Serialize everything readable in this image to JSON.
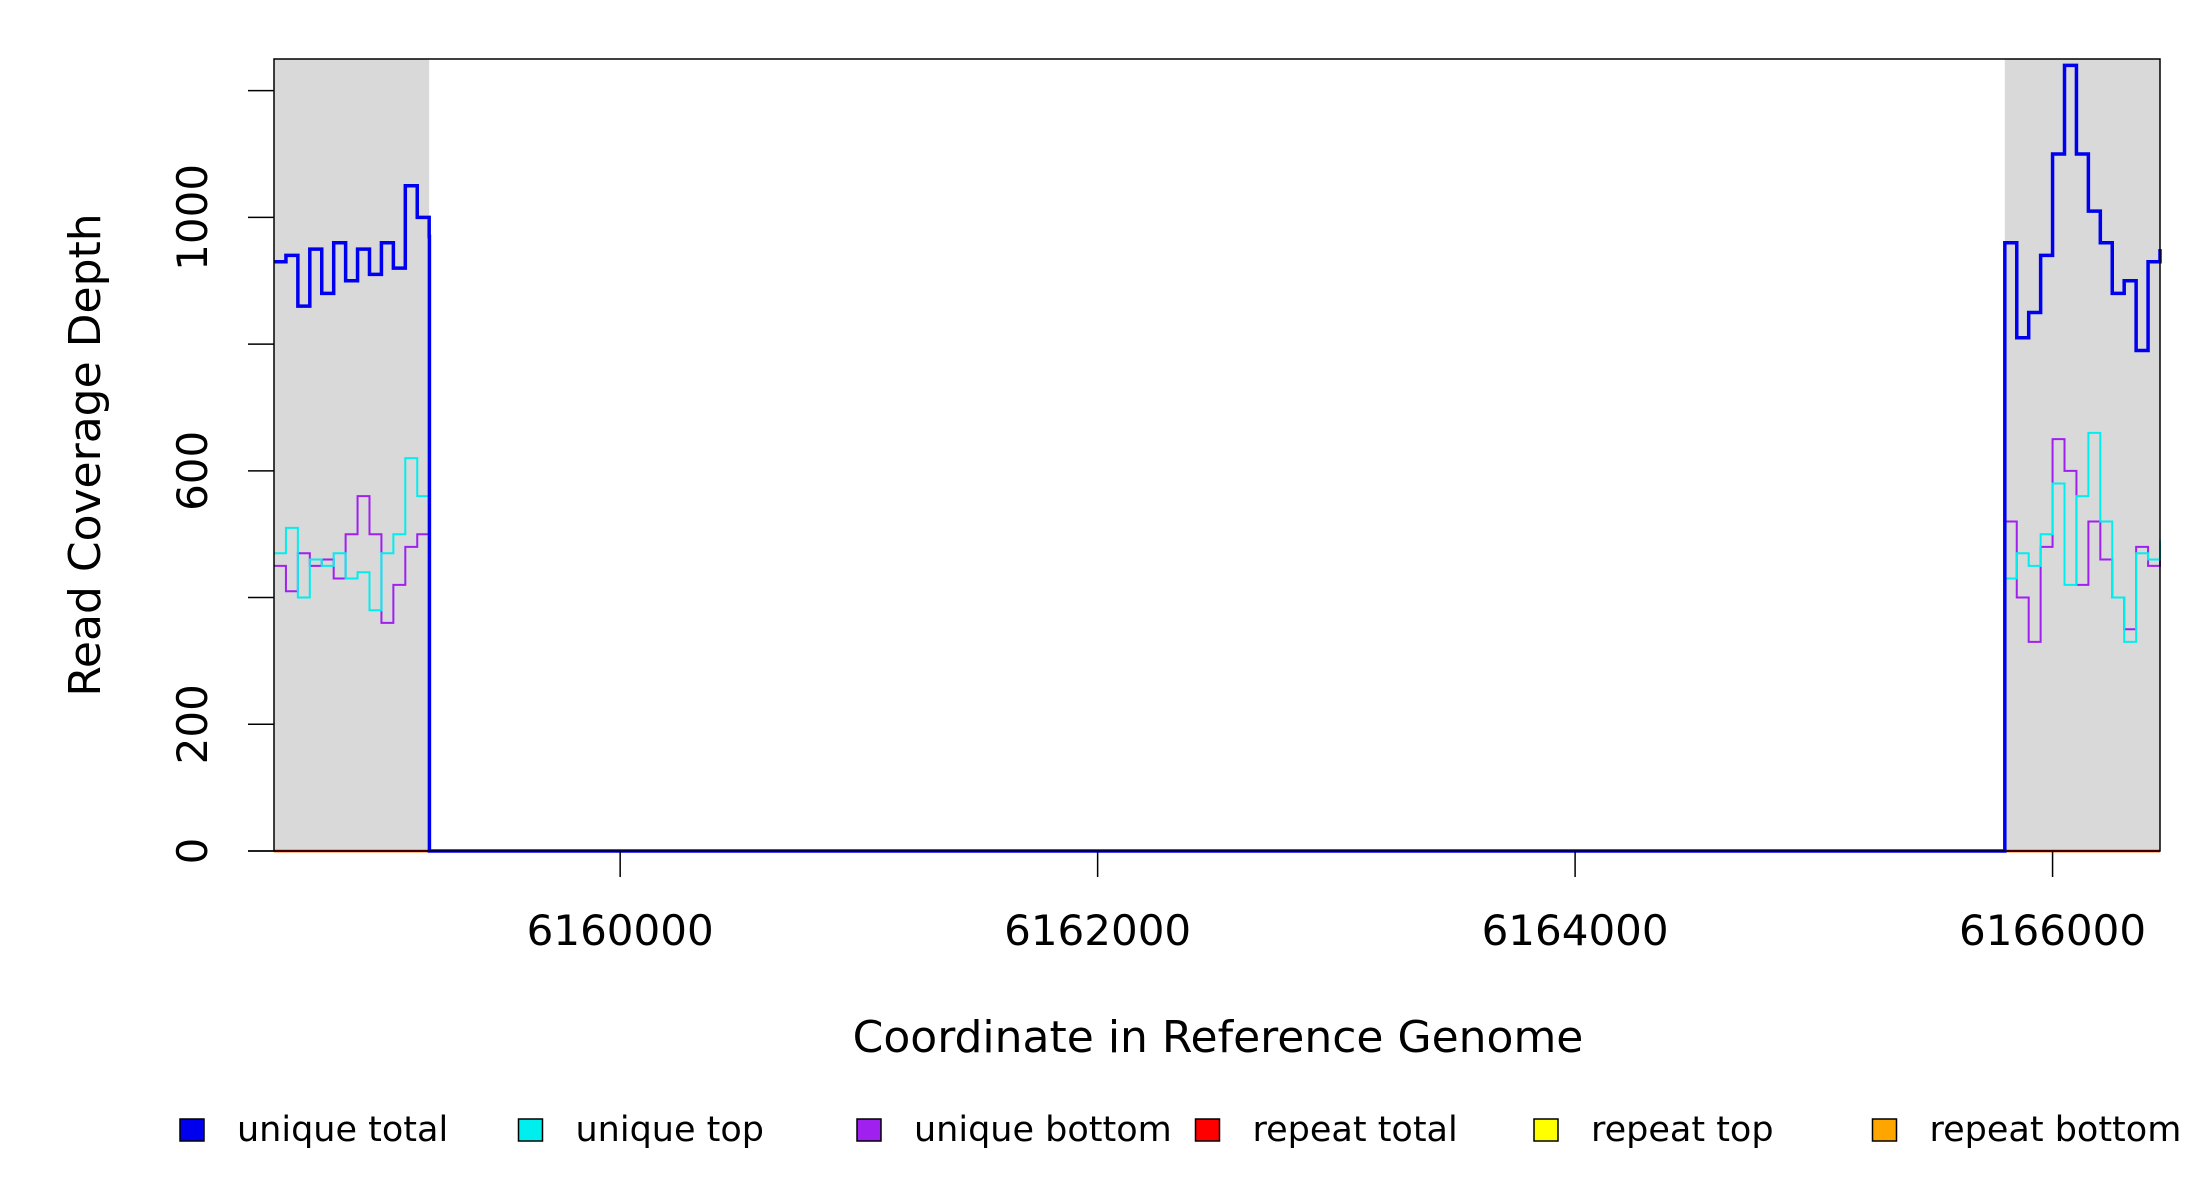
{
  "chart_data": {
    "type": "line",
    "xlabel": "Coordinate in Reference Genome",
    "ylabel": "Read Coverage Depth",
    "xlim": [
      6158550,
      6166450
    ],
    "ylim": [
      0,
      1250
    ],
    "x_ticks": [
      6160000,
      6162000,
      6164000,
      6166000
    ],
    "x_tick_labels": [
      "6160000",
      "6162000",
      "6164000",
      "6166000"
    ],
    "y_ticks": [
      0,
      200,
      400,
      600,
      800,
      1000,
      1200
    ],
    "y_tick_labels": [
      "0",
      "200",
      "",
      "600",
      "",
      "1000",
      ""
    ],
    "shaded_regions": [
      [
        6158550,
        6159200
      ],
      [
        6165800,
        6166450
      ]
    ],
    "grid": false,
    "legend_position": "bottom",
    "series": [
      {
        "name": "unique total",
        "color": "#0000ee",
        "x": [
          6158550,
          6158600,
          6158650,
          6158700,
          6158750,
          6158800,
          6158850,
          6158900,
          6158950,
          6159000,
          6159050,
          6159100,
          6159150,
          6159200,
          6159201,
          6165799,
          6165800,
          6165850,
          6165900,
          6165950,
          6166000,
          6166050,
          6166100,
          6166150,
          6166200,
          6166250,
          6166300,
          6166350,
          6166400,
          6166450
        ],
        "y": [
          930,
          940,
          860,
          950,
          880,
          960,
          900,
          950,
          910,
          960,
          920,
          1050,
          1000,
          970,
          0,
          0,
          960,
          810,
          850,
          940,
          1100,
          1240,
          1100,
          1010,
          960,
          880,
          900,
          790,
          930,
          950
        ]
      },
      {
        "name": "unique top",
        "color": "#00eeee",
        "x": [
          6158550,
          6158600,
          6158650,
          6158700,
          6158750,
          6158800,
          6158850,
          6158900,
          6158950,
          6159000,
          6159050,
          6159100,
          6159150,
          6159200,
          6159201,
          6165799,
          6165800,
          6165850,
          6165900,
          6165950,
          6166000,
          6166050,
          6166100,
          6166150,
          6166200,
          6166250,
          6166300,
          6166350,
          6166400,
          6166450
        ],
        "y": [
          470,
          510,
          400,
          460,
          450,
          470,
          430,
          440,
          380,
          470,
          500,
          620,
          560,
          480,
          0,
          0,
          430,
          470,
          450,
          500,
          580,
          420,
          560,
          660,
          520,
          400,
          330,
          470,
          460,
          490
        ]
      },
      {
        "name": "unique bottom",
        "color": "#a020f0",
        "x": [
          6158550,
          6158600,
          6158650,
          6158700,
          6158750,
          6158800,
          6158850,
          6158900,
          6158950,
          6159000,
          6159050,
          6159100,
          6159150,
          6159200,
          6159201,
          6165799,
          6165800,
          6165850,
          6165900,
          6165950,
          6166000,
          6166050,
          6166100,
          6166150,
          6166200,
          6166250,
          6166300,
          6166350,
          6166400,
          6166450
        ],
        "y": [
          450,
          410,
          470,
          450,
          460,
          430,
          500,
          560,
          500,
          360,
          420,
          480,
          500,
          0,
          0,
          0,
          520,
          400,
          330,
          480,
          650,
          600,
          420,
          520,
          460,
          400,
          350,
          480,
          450,
          480
        ]
      },
      {
        "name": "repeat total",
        "color": "#ff0000",
        "x": [
          6158550,
          6166450
        ],
        "y": [
          0,
          0
        ]
      },
      {
        "name": "repeat top",
        "color": "#ffff00",
        "x": [
          6158550,
          6166450
        ],
        "y": [
          0,
          0
        ]
      },
      {
        "name": "repeat bottom",
        "color": "#ffa500",
        "x": [
          6158550,
          6166450
        ],
        "y": [
          0,
          0
        ]
      }
    ]
  }
}
